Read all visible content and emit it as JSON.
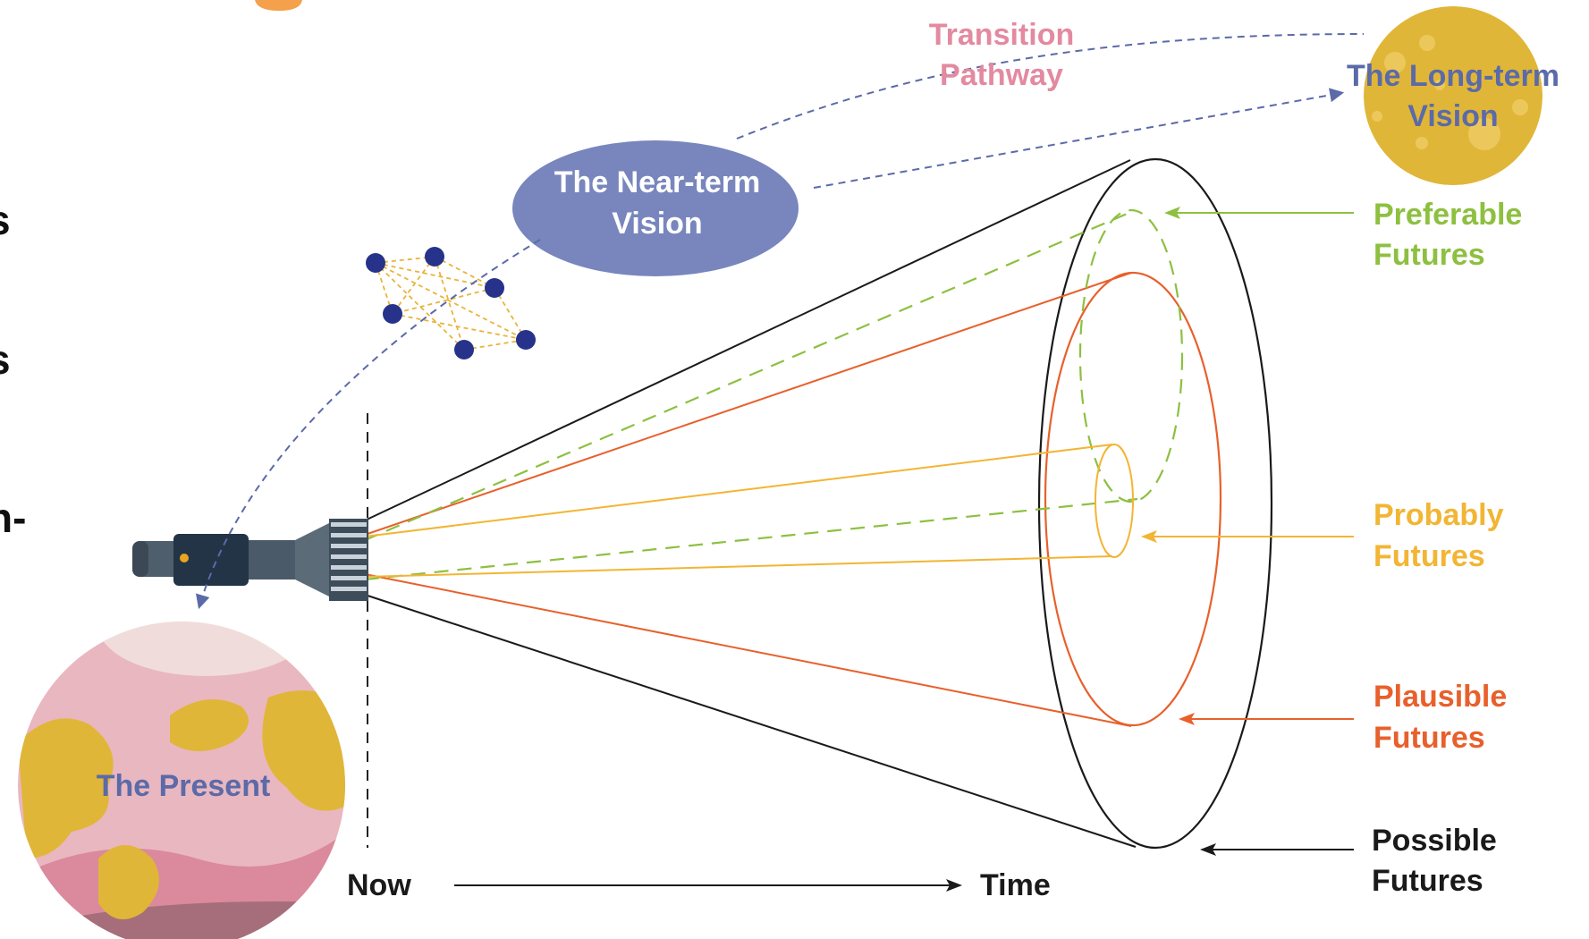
{
  "labels": {
    "transition_line1": "Transition",
    "transition_line2": "Pathway",
    "longterm_line1": "The Long-term",
    "longterm_line2": "Vision",
    "nearterm_line1": "The Near-term",
    "nearterm_line2": "Vision",
    "preferable_line1": "Preferable",
    "preferable_line2": "Futures",
    "probably_line1": "Probably",
    "probably_line2": "Futures",
    "plausible_line1": "Plausible",
    "plausible_line2": "Futures",
    "possible_line1": "Possible",
    "possible_line2": "Futures",
    "present": "The Present",
    "now": "Now",
    "time": "Time"
  },
  "cropped_text": {
    "edge1": "s",
    "edge2": "s",
    "edge3": "n-"
  },
  "colors": {
    "preferable": "#8dc040",
    "probably": "#f2b534",
    "plausible": "#e8602c",
    "possible": "#1a1a1a",
    "vision_blue": "#6f7fb7",
    "transition_pink": "#e38aa0",
    "planet_gold": "#e0b638",
    "planet_pink": "#e9b7c0",
    "network_node": "#27338a"
  }
}
